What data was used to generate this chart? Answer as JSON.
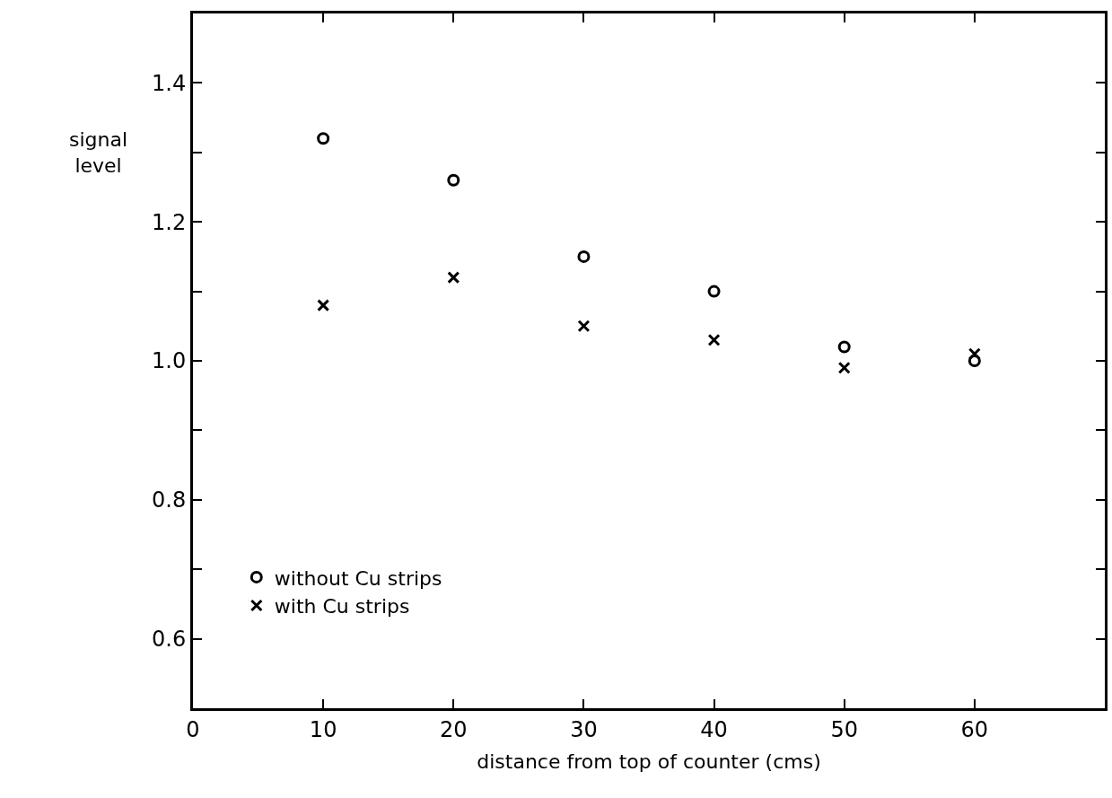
{
  "chart_data": {
    "type": "scatter",
    "xlabel": "distance from top of counter (cms)",
    "ylabel": "signal\nlevel",
    "x": [
      10,
      20,
      30,
      40,
      50,
      60
    ],
    "series": [
      {
        "name": "without Cu strips",
        "color": "#000000",
        "marker": "circle",
        "values": [
          1.32,
          1.26,
          1.15,
          1.1,
          1.02,
          1.0
        ]
      },
      {
        "name": "with Cu strips",
        "color": "#000000",
        "marker": "cross",
        "values": [
          1.08,
          1.12,
          1.05,
          1.03,
          0.99,
          1.01
        ]
      }
    ],
    "xlim": [
      0,
      70
    ],
    "xticks": [
      0,
      10,
      20,
      30,
      40,
      50,
      60
    ],
    "ylim": [
      0.5,
      1.5
    ],
    "yticks": [
      {
        "value": 0.6,
        "label": "0.6"
      },
      {
        "value": 0.7,
        "label": null
      },
      {
        "value": 0.8,
        "label": "0.8"
      },
      {
        "value": 0.9,
        "label": null
      },
      {
        "value": 1.0,
        "label": "1.0"
      },
      {
        "value": 1.1,
        "label": null
      },
      {
        "value": 1.2,
        "label": "1.2"
      },
      {
        "value": 1.3,
        "label": null
      },
      {
        "value": 1.4,
        "label": "1.4"
      }
    ],
    "legend": "bottom left"
  }
}
